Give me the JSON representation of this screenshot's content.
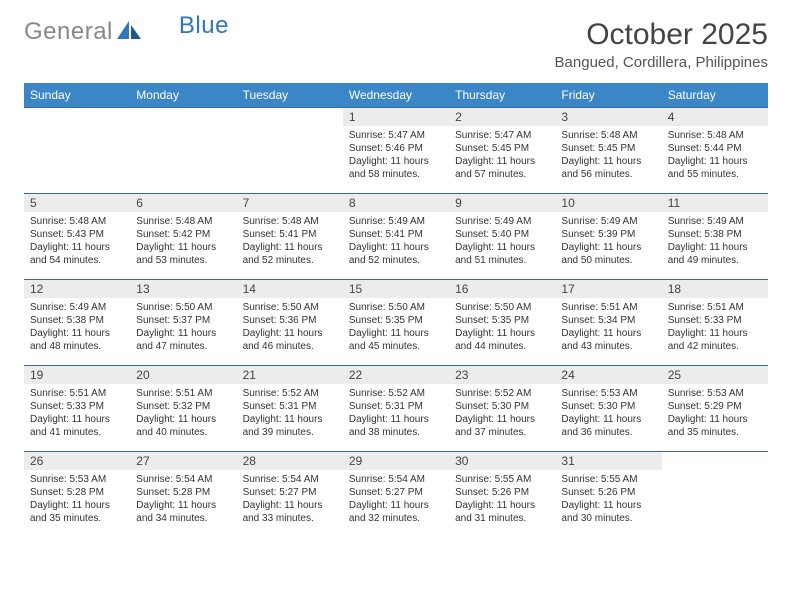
{
  "brand": {
    "gray": "General",
    "blue": "Blue"
  },
  "title": "October 2025",
  "location": "Bangued, Cordillera, Philippines",
  "colors": {
    "header_bg": "#3b86c6",
    "header_text": "#ffffff",
    "row_border": "#3b6a96",
    "daynum_bg": "#ececec",
    "body_text": "#333333",
    "logo_gray": "#888888",
    "logo_blue": "#2f77b8"
  },
  "day_headers": [
    "Sunday",
    "Monday",
    "Tuesday",
    "Wednesday",
    "Thursday",
    "Friday",
    "Saturday"
  ],
  "weeks": [
    [
      {
        "n": "",
        "l": []
      },
      {
        "n": "",
        "l": []
      },
      {
        "n": "",
        "l": []
      },
      {
        "n": "1",
        "l": [
          "Sunrise: 5:47 AM",
          "Sunset: 5:46 PM",
          "Daylight: 11 hours",
          "and 58 minutes."
        ]
      },
      {
        "n": "2",
        "l": [
          "Sunrise: 5:47 AM",
          "Sunset: 5:45 PM",
          "Daylight: 11 hours",
          "and 57 minutes."
        ]
      },
      {
        "n": "3",
        "l": [
          "Sunrise: 5:48 AM",
          "Sunset: 5:45 PM",
          "Daylight: 11 hours",
          "and 56 minutes."
        ]
      },
      {
        "n": "4",
        "l": [
          "Sunrise: 5:48 AM",
          "Sunset: 5:44 PM",
          "Daylight: 11 hours",
          "and 55 minutes."
        ]
      }
    ],
    [
      {
        "n": "5",
        "l": [
          "Sunrise: 5:48 AM",
          "Sunset: 5:43 PM",
          "Daylight: 11 hours",
          "and 54 minutes."
        ]
      },
      {
        "n": "6",
        "l": [
          "Sunrise: 5:48 AM",
          "Sunset: 5:42 PM",
          "Daylight: 11 hours",
          "and 53 minutes."
        ]
      },
      {
        "n": "7",
        "l": [
          "Sunrise: 5:48 AM",
          "Sunset: 5:41 PM",
          "Daylight: 11 hours",
          "and 52 minutes."
        ]
      },
      {
        "n": "8",
        "l": [
          "Sunrise: 5:49 AM",
          "Sunset: 5:41 PM",
          "Daylight: 11 hours",
          "and 52 minutes."
        ]
      },
      {
        "n": "9",
        "l": [
          "Sunrise: 5:49 AM",
          "Sunset: 5:40 PM",
          "Daylight: 11 hours",
          "and 51 minutes."
        ]
      },
      {
        "n": "10",
        "l": [
          "Sunrise: 5:49 AM",
          "Sunset: 5:39 PM",
          "Daylight: 11 hours",
          "and 50 minutes."
        ]
      },
      {
        "n": "11",
        "l": [
          "Sunrise: 5:49 AM",
          "Sunset: 5:38 PM",
          "Daylight: 11 hours",
          "and 49 minutes."
        ]
      }
    ],
    [
      {
        "n": "12",
        "l": [
          "Sunrise: 5:49 AM",
          "Sunset: 5:38 PM",
          "Daylight: 11 hours",
          "and 48 minutes."
        ]
      },
      {
        "n": "13",
        "l": [
          "Sunrise: 5:50 AM",
          "Sunset: 5:37 PM",
          "Daylight: 11 hours",
          "and 47 minutes."
        ]
      },
      {
        "n": "14",
        "l": [
          "Sunrise: 5:50 AM",
          "Sunset: 5:36 PM",
          "Daylight: 11 hours",
          "and 46 minutes."
        ]
      },
      {
        "n": "15",
        "l": [
          "Sunrise: 5:50 AM",
          "Sunset: 5:35 PM",
          "Daylight: 11 hours",
          "and 45 minutes."
        ]
      },
      {
        "n": "16",
        "l": [
          "Sunrise: 5:50 AM",
          "Sunset: 5:35 PM",
          "Daylight: 11 hours",
          "and 44 minutes."
        ]
      },
      {
        "n": "17",
        "l": [
          "Sunrise: 5:51 AM",
          "Sunset: 5:34 PM",
          "Daylight: 11 hours",
          "and 43 minutes."
        ]
      },
      {
        "n": "18",
        "l": [
          "Sunrise: 5:51 AM",
          "Sunset: 5:33 PM",
          "Daylight: 11 hours",
          "and 42 minutes."
        ]
      }
    ],
    [
      {
        "n": "19",
        "l": [
          "Sunrise: 5:51 AM",
          "Sunset: 5:33 PM",
          "Daylight: 11 hours",
          "and 41 minutes."
        ]
      },
      {
        "n": "20",
        "l": [
          "Sunrise: 5:51 AM",
          "Sunset: 5:32 PM",
          "Daylight: 11 hours",
          "and 40 minutes."
        ]
      },
      {
        "n": "21",
        "l": [
          "Sunrise: 5:52 AM",
          "Sunset: 5:31 PM",
          "Daylight: 11 hours",
          "and 39 minutes."
        ]
      },
      {
        "n": "22",
        "l": [
          "Sunrise: 5:52 AM",
          "Sunset: 5:31 PM",
          "Daylight: 11 hours",
          "and 38 minutes."
        ]
      },
      {
        "n": "23",
        "l": [
          "Sunrise: 5:52 AM",
          "Sunset: 5:30 PM",
          "Daylight: 11 hours",
          "and 37 minutes."
        ]
      },
      {
        "n": "24",
        "l": [
          "Sunrise: 5:53 AM",
          "Sunset: 5:30 PM",
          "Daylight: 11 hours",
          "and 36 minutes."
        ]
      },
      {
        "n": "25",
        "l": [
          "Sunrise: 5:53 AM",
          "Sunset: 5:29 PM",
          "Daylight: 11 hours",
          "and 35 minutes."
        ]
      }
    ],
    [
      {
        "n": "26",
        "l": [
          "Sunrise: 5:53 AM",
          "Sunset: 5:28 PM",
          "Daylight: 11 hours",
          "and 35 minutes."
        ]
      },
      {
        "n": "27",
        "l": [
          "Sunrise: 5:54 AM",
          "Sunset: 5:28 PM",
          "Daylight: 11 hours",
          "and 34 minutes."
        ]
      },
      {
        "n": "28",
        "l": [
          "Sunrise: 5:54 AM",
          "Sunset: 5:27 PM",
          "Daylight: 11 hours",
          "and 33 minutes."
        ]
      },
      {
        "n": "29",
        "l": [
          "Sunrise: 5:54 AM",
          "Sunset: 5:27 PM",
          "Daylight: 11 hours",
          "and 32 minutes."
        ]
      },
      {
        "n": "30",
        "l": [
          "Sunrise: 5:55 AM",
          "Sunset: 5:26 PM",
          "Daylight: 11 hours",
          "and 31 minutes."
        ]
      },
      {
        "n": "31",
        "l": [
          "Sunrise: 5:55 AM",
          "Sunset: 5:26 PM",
          "Daylight: 11 hours",
          "and 30 minutes."
        ]
      },
      {
        "n": "",
        "l": []
      }
    ]
  ]
}
